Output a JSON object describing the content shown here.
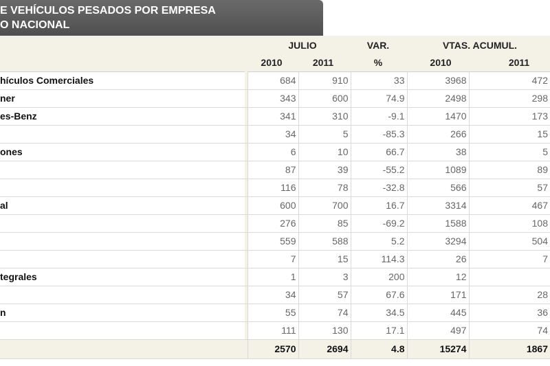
{
  "title": {
    "line1": "E VEHÍCULOS PESADOS POR EMPRESA",
    "line2": "O NACIONAL"
  },
  "header": {
    "julio": "JULIO",
    "var": "VAR.",
    "vtas": "VTAS. ACUMUL.",
    "y2010": "2010",
    "y2011": "2011",
    "pct": "%",
    "acc2010": "2010",
    "acc2011": "2011"
  },
  "rows": [
    {
      "name": "hículos Comerciales",
      "jul2010": "684",
      "jul2011": "910",
      "var": "33",
      "acc2010": "3968",
      "acc2011": "472"
    },
    {
      "name": "ner",
      "jul2010": "343",
      "jul2011": "600",
      "var": "74.9",
      "acc2010": "2498",
      "acc2011": "298"
    },
    {
      "name": "es-Benz",
      "jul2010": "341",
      "jul2011": "310",
      "var": "-9.1",
      "acc2010": "1470",
      "acc2011": "173"
    },
    {
      "name": "",
      "jul2010": "34",
      "jul2011": "5",
      "var": "-85.3",
      "acc2010": "266",
      "acc2011": "15"
    },
    {
      "name": "ones",
      "jul2010": "6",
      "jul2011": "10",
      "var": "66.7",
      "acc2010": "38",
      "acc2011": "5"
    },
    {
      "name": "",
      "jul2010": "87",
      "jul2011": "39",
      "var": "-55.2",
      "acc2010": "1089",
      "acc2011": "89"
    },
    {
      "name": "",
      "jul2010": "116",
      "jul2011": "78",
      "var": "-32.8",
      "acc2010": "566",
      "acc2011": "57"
    },
    {
      "name": "al",
      "jul2010": "600",
      "jul2011": "700",
      "var": "16.7",
      "acc2010": "3314",
      "acc2011": "467"
    },
    {
      "name": "",
      "jul2010": "276",
      "jul2011": "85",
      "var": "-69.2",
      "acc2010": "1588",
      "acc2011": "108"
    },
    {
      "name": "",
      "jul2010": "559",
      "jul2011": "588",
      "var": "5.2",
      "acc2010": "3294",
      "acc2011": "504"
    },
    {
      "name": "",
      "jul2010": "7",
      "jul2011": "15",
      "var": "114.3",
      "acc2010": "26",
      "acc2011": "7"
    },
    {
      "name": "tegrales",
      "jul2010": "1",
      "jul2011": "3",
      "var": "200",
      "acc2010": "12",
      "acc2011": ""
    },
    {
      "name": "",
      "jul2010": "34",
      "jul2011": "57",
      "var": "67.6",
      "acc2010": "171",
      "acc2011": "28"
    },
    {
      "name": "n",
      "jul2010": "55",
      "jul2011": "74",
      "var": "34.5",
      "acc2010": "445",
      "acc2011": "36"
    },
    {
      "name": "",
      "jul2010": "111",
      "jul2011": "130",
      "var": "17.1",
      "acc2010": "497",
      "acc2011": "74"
    }
  ],
  "total": {
    "jul2010": "2570",
    "jul2011": "2694",
    "var": "4.8",
    "acc2010": "15274",
    "acc2011": "1867"
  }
}
